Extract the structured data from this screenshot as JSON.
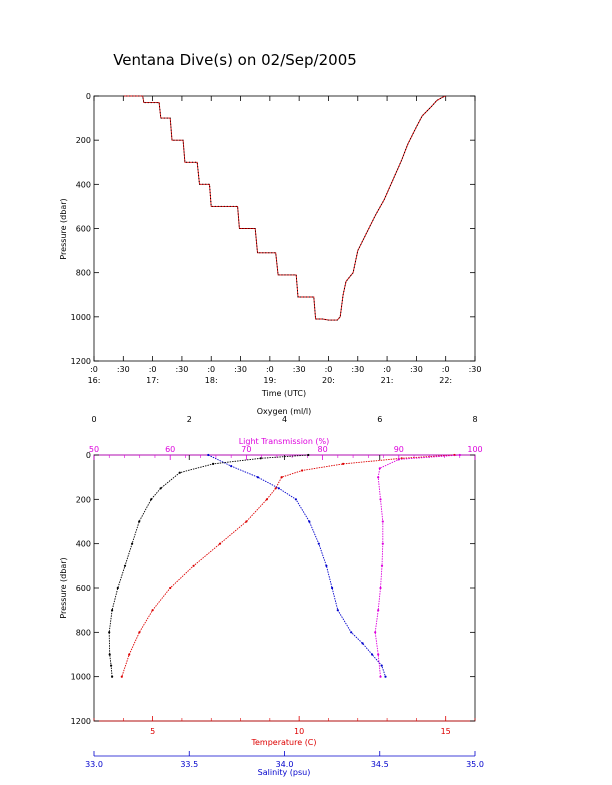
{
  "page_title": "Ventana Dive(s) on 02/Sep/2005",
  "colors": {
    "axis": "#000000",
    "temperature": "#dd0000",
    "salinity": "#0000cc",
    "light": "#dd00dd",
    "oxygen": "#000000"
  },
  "chart_data": [
    {
      "type": "line",
      "title": "Ventana Dive(s) on 02/Sep/2005",
      "xlabel": "Time (UTC)",
      "ylabel": "Pressure (dbar)",
      "xlim": [
        16.0,
        22.5
      ],
      "ylim": [
        1200,
        0
      ],
      "x_ticks": [
        {
          "v": 16.0,
          "l1": ":0",
          "l2": "16:"
        },
        {
          "v": 16.5,
          "l1": ":30",
          "l2": ""
        },
        {
          "v": 17.0,
          "l1": ":0",
          "l2": "17:"
        },
        {
          "v": 17.5,
          "l1": ":30",
          "l2": ""
        },
        {
          "v": 18.0,
          "l1": ":0",
          "l2": "18:"
        },
        {
          "v": 18.5,
          "l1": ":30",
          "l2": ""
        },
        {
          "v": 19.0,
          "l1": ":0",
          "l2": "19:"
        },
        {
          "v": 19.5,
          "l1": ":30",
          "l2": ""
        },
        {
          "v": 20.0,
          "l1": ":0",
          "l2": "20:"
        },
        {
          "v": 20.5,
          "l1": ":30",
          "l2": ""
        },
        {
          "v": 21.0,
          "l1": ":0",
          "l2": "21:"
        },
        {
          "v": 21.5,
          "l1": ":30",
          "l2": ""
        },
        {
          "v": 22.0,
          "l1": ":0",
          "l2": "22:"
        },
        {
          "v": 22.5,
          "l1": ":30",
          "l2": ""
        }
      ],
      "y_ticks": [
        "0",
        "200",
        "400",
        "600",
        "800",
        "1000",
        "1200"
      ],
      "series": [
        {
          "x": [
            16.5,
            16.83,
            16.85,
            17.11,
            17.14,
            17.3,
            17.33,
            17.52,
            17.55,
            17.76,
            17.8,
            17.97,
            18.0,
            18.45,
            18.48,
            18.75,
            18.79,
            19.1,
            19.14,
            19.45,
            19.48,
            19.75,
            19.78,
            19.9,
            20.0,
            20.15,
            20.2,
            20.25,
            20.3,
            20.42,
            20.5,
            20.65,
            20.8,
            20.95,
            21.1,
            21.25,
            21.35,
            21.5,
            21.6,
            21.75,
            21.85,
            21.95,
            22.0
          ],
          "y": [
            0,
            0,
            30,
            30,
            100,
            100,
            200,
            200,
            300,
            300,
            400,
            400,
            500,
            500,
            600,
            600,
            710,
            710,
            810,
            810,
            910,
            910,
            1010,
            1010,
            1015,
            1015,
            1000,
            900,
            840,
            800,
            700,
            620,
            540,
            470,
            380,
            290,
            220,
            140,
            90,
            50,
            20,
            5,
            0
          ]
        }
      ]
    },
    {
      "type": "line",
      "ylabel": "Pressure (dbar)",
      "ylim": [
        1200,
        0
      ],
      "y_ticks": [
        "0",
        "200",
        "400",
        "600",
        "800",
        "1000",
        "1200"
      ],
      "axes": {
        "oxygen": {
          "label": "Oxygen (ml/l)",
          "range": [
            0,
            8
          ],
          "ticks": [
            "0",
            "2",
            "4",
            "6",
            "8"
          ]
        },
        "light": {
          "label": "Light Transmission (%)",
          "range": [
            50,
            100
          ],
          "ticks": [
            "50",
            "60",
            "70",
            "80",
            "90",
            "100"
          ]
        },
        "temperature": {
          "label": "Temperature (C)",
          "range": [
            3.0,
            16.0
          ],
          "ticks": [
            "5",
            "10",
            "15"
          ]
        },
        "salinity": {
          "label": "Salinity (psu)",
          "range": [
            33.0,
            35.0
          ],
          "ticks": [
            "33.0",
            "33.5",
            "34.0",
            "34.5",
            "35.0"
          ]
        }
      },
      "series": [
        {
          "name": "Temperature (C)",
          "color": "#dd0000",
          "x": [
            15.3,
            13.5,
            11.5,
            10.1,
            9.4,
            9.2,
            8.9,
            8.2,
            7.3,
            6.4,
            5.6,
            5.0,
            4.55,
            4.2,
            3.95
          ],
          "y": [
            0,
            15,
            40,
            70,
            100,
            150,
            200,
            300,
            400,
            500,
            600,
            700,
            800,
            900,
            1000
          ]
        },
        {
          "name": "Salinity (psu)",
          "color": "#0000cc",
          "x": [
            33.6,
            33.72,
            33.86,
            33.97,
            34.06,
            34.13,
            34.18,
            34.22,
            34.25,
            34.28,
            34.35,
            34.41,
            34.46,
            34.51,
            34.53
          ],
          "y": [
            0,
            50,
            100,
            150,
            200,
            300,
            400,
            500,
            600,
            700,
            800,
            850,
            900,
            950,
            1000
          ]
        },
        {
          "name": "Light Transmission (%)",
          "color": "#dd00dd",
          "x": [
            98,
            90,
            87.5,
            87.3,
            87.6,
            87.9,
            87.9,
            87.8,
            87.6,
            87.3,
            86.9,
            87.3,
            87.6
          ],
          "y": [
            0,
            20,
            60,
            100,
            200,
            300,
            400,
            500,
            600,
            700,
            800,
            900,
            1000
          ]
        },
        {
          "name": "Oxygen (ml/l)",
          "color": "#000000",
          "x": [
            4.5,
            3.5,
            2.5,
            1.8,
            1.4,
            1.2,
            0.95,
            0.8,
            0.65,
            0.5,
            0.38,
            0.32,
            0.33,
            0.36,
            0.38
          ],
          "y": [
            0,
            15,
            40,
            80,
            150,
            200,
            300,
            400,
            500,
            600,
            700,
            800,
            900,
            950,
            1000
          ]
        }
      ]
    }
  ]
}
